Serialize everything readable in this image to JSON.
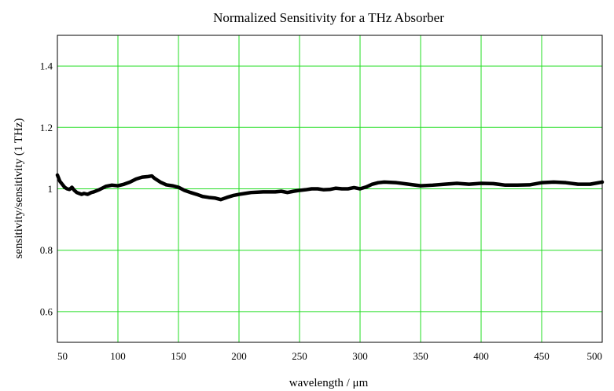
{
  "chart_data": {
    "type": "line",
    "title": "Normalized Sensitivity for a THz Absorber",
    "xlabel": "wavelength / μm",
    "ylabel": "sensitivity/sensitivity (1 THz)",
    "xlim": [
      50,
      500
    ],
    "ylim": [
      0.5,
      1.5
    ],
    "grid": true,
    "grid_color": "#22dd22",
    "line_color": "#000000",
    "xticks": [
      50,
      100,
      150,
      200,
      250,
      300,
      350,
      400,
      450,
      500
    ],
    "xtick_labels": [
      "50",
      "100",
      "150",
      "200",
      "250",
      "300",
      "350",
      "400",
      "450",
      "500"
    ],
    "yticks": [
      0.6,
      0.8,
      1.0,
      1.2,
      1.4
    ],
    "ytick_labels": [
      "0.6",
      "0.8",
      "1",
      "1.2",
      "1.4"
    ],
    "series": [
      {
        "x": [
          50,
          52,
          54,
          56,
          58,
          60,
          62,
          64,
          66,
          68,
          70,
          72,
          75,
          78,
          80,
          85,
          90,
          95,
          100,
          105,
          110,
          115,
          120,
          125,
          128,
          130,
          135,
          140,
          145,
          150,
          155,
          160,
          165,
          170,
          175,
          180,
          185,
          190,
          195,
          200,
          205,
          210,
          220,
          230,
          235,
          240,
          245,
          250,
          255,
          260,
          265,
          270,
          275,
          280,
          285,
          290,
          295,
          300,
          305,
          310,
          315,
          320,
          330,
          340,
          350,
          360,
          370,
          380,
          390,
          400,
          410,
          420,
          430,
          440,
          450,
          460,
          470,
          480,
          490,
          500
        ],
        "y": [
          1.045,
          1.025,
          1.015,
          1.005,
          1.0,
          0.998,
          1.005,
          0.995,
          0.988,
          0.985,
          0.982,
          0.985,
          0.982,
          0.988,
          0.99,
          0.998,
          1.008,
          1.012,
          1.01,
          1.015,
          1.022,
          1.032,
          1.038,
          1.04,
          1.042,
          1.035,
          1.022,
          1.013,
          1.01,
          1.005,
          0.995,
          0.988,
          0.982,
          0.975,
          0.972,
          0.97,
          0.965,
          0.972,
          0.978,
          0.982,
          0.985,
          0.988,
          0.99,
          0.99,
          0.992,
          0.988,
          0.992,
          0.995,
          0.997,
          1.0,
          1.0,
          0.997,
          0.998,
          1.002,
          1.0,
          1.0,
          1.004,
          1.0,
          1.006,
          1.015,
          1.02,
          1.022,
          1.02,
          1.015,
          1.01,
          1.012,
          1.015,
          1.018,
          1.015,
          1.018,
          1.017,
          1.012,
          1.012,
          1.013,
          1.02,
          1.022,
          1.02,
          1.015,
          1.015,
          1.022
        ]
      }
    ]
  }
}
